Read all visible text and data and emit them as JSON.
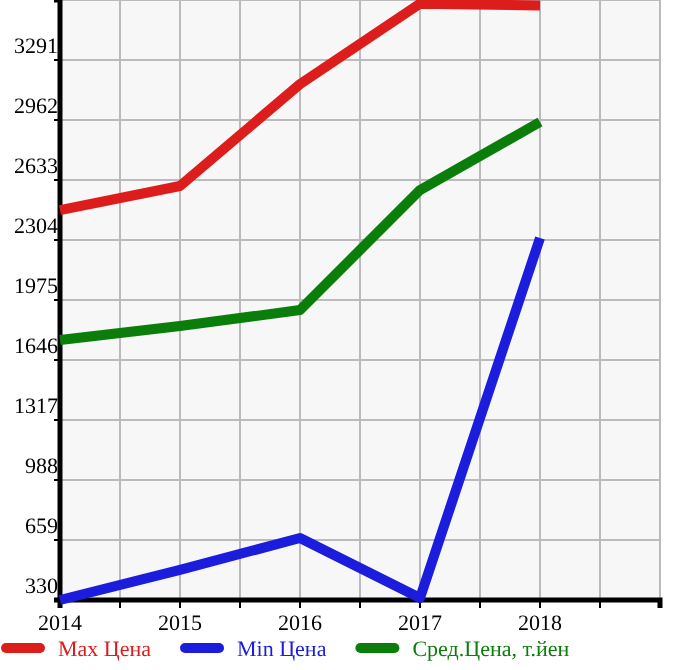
{
  "chart_data": {
    "type": "line",
    "x": [
      2014,
      2015,
      2016,
      2017,
      2018
    ],
    "series": [
      {
        "name": "Max Цена",
        "color": "#dd1c1c",
        "values": [
          2468,
          2600,
          3159,
          3600,
          3590
        ]
      },
      {
        "name": "Min Цена",
        "color": "#1c1cdd",
        "values": [
          330,
          495,
          670,
          341,
          2315
        ]
      },
      {
        "name": "Сред.Цена, т.йен",
        "color": "#0a7d0a",
        "values": [
          1756,
          1832,
          1920,
          2578,
          2951
        ]
      }
    ],
    "xlim": [
      2014,
      2019
    ],
    "xticks": [
      2014,
      {
        "value": 2014.5,
        "label": null
      },
      2015,
      {
        "value": 2015.5,
        "label": null
      },
      2016,
      {
        "value": 2016.5,
        "label": null
      },
      2017,
      {
        "value": 2017.5,
        "label": null
      },
      2018,
      {
        "value": 2018.5,
        "label": null
      },
      {
        "value": 2019,
        "label": null
      }
    ],
    "ylim": [
      330,
      3620
    ],
    "yticks": [
      330,
      659,
      988,
      1317,
      1646,
      1975,
      2304,
      2633,
      2962,
      3291,
      {
        "value": 3620,
        "label": null
      }
    ],
    "grid": true,
    "legend": "bottom",
    "marker": "none",
    "line_style": "solid"
  }
}
